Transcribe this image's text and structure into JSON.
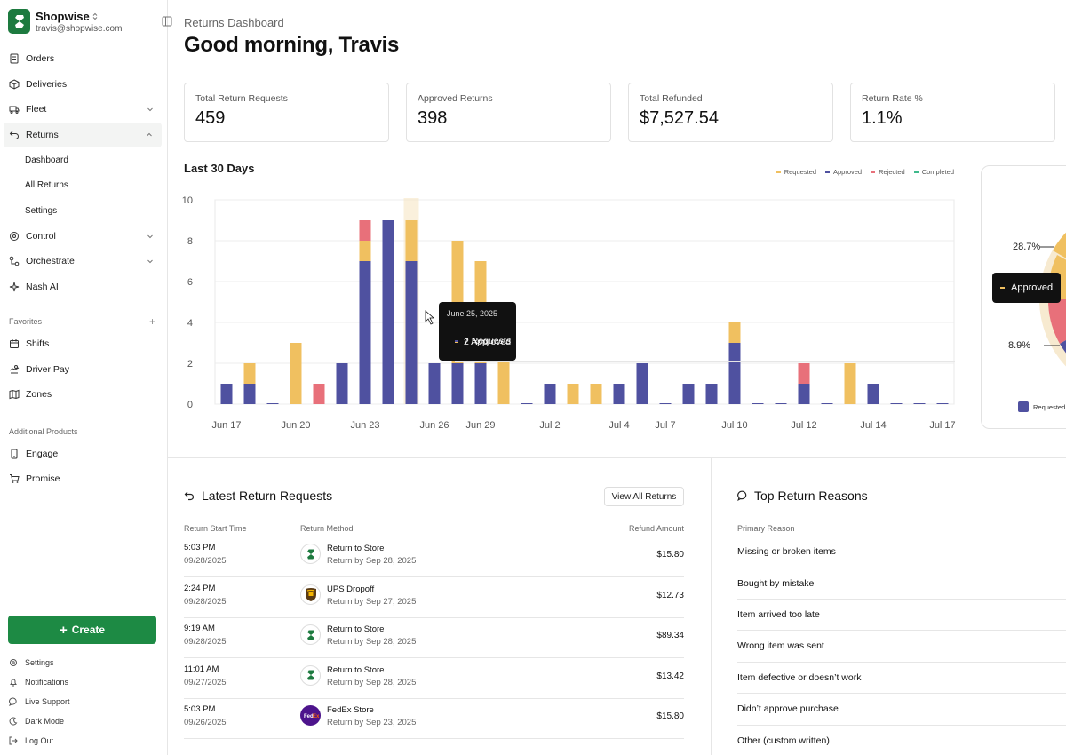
{
  "brand": {
    "name": "Shopwise",
    "email": "travis@shopwise.com"
  },
  "nav": {
    "items": [
      {
        "label": "Orders",
        "icon": "orders-icon"
      },
      {
        "label": "Deliveries",
        "icon": "box-icon"
      },
      {
        "label": "Fleet",
        "icon": "truck-icon"
      },
      {
        "label": "Returns",
        "icon": "return-icon"
      }
    ],
    "returns_sub": [
      "Dashboard",
      "All Returns",
      "Settings"
    ],
    "items2": [
      {
        "label": "Control",
        "icon": "control-icon"
      },
      {
        "label": "Orchestrate",
        "icon": "orchestrate-icon"
      },
      {
        "label": "Nash AI",
        "icon": "sparkle-icon"
      }
    ],
    "favorites_label": "Favorites",
    "favorites": [
      {
        "label": "Shifts",
        "icon": "calendar-icon"
      },
      {
        "label": "Driver Pay",
        "icon": "pay-icon"
      },
      {
        "label": "Zones",
        "icon": "map-icon"
      }
    ],
    "additional_label": "Additional Products",
    "additional": [
      {
        "label": "Engage",
        "icon": "phone-icon"
      },
      {
        "label": "Promise",
        "icon": "cart-icon"
      }
    ],
    "create_label": "Create",
    "footer": [
      "Settings",
      "Notifications",
      "Live Support",
      "Dark Mode",
      "Log Out"
    ]
  },
  "header": {
    "breadcrumb": "Returns Dashboard",
    "greeting": "Good morning, Travis"
  },
  "stats": [
    {
      "label": "Total Return Requests",
      "value": "459"
    },
    {
      "label": "Approved Returns",
      "value": "398"
    },
    {
      "label": "Total Refunded",
      "value": "$7,527.54"
    },
    {
      "label": "Return Rate %",
      "value": "1.1%"
    }
  ],
  "colors": {
    "requested": "#f0c060",
    "approved": "#4f51a0",
    "rejected": "#e8707a",
    "completed": "#3fb98c",
    "brand": "#1d8a44"
  },
  "chart_data": {
    "type": "bar",
    "title": "Last 30 Days",
    "stacked": true,
    "legend": [
      "Requested",
      "Approved",
      "Rejected",
      "Completed"
    ],
    "legend_position": "top-right",
    "ylim": [
      0,
      10
    ],
    "yticks": [
      0,
      2,
      4,
      6,
      8,
      10
    ],
    "xtick_labels": [
      "Jun 17",
      "Jun 20",
      "Jun 23",
      "Jun 26",
      "Jun 29",
      "Jul 2",
      "Jul 4",
      "Jul 7",
      "Jul 10",
      "Jul 12",
      "Jul 14",
      "Jul 17"
    ],
    "xtick_index": [
      0,
      3,
      6,
      9,
      11,
      14,
      17,
      19,
      22,
      25,
      28,
      31
    ],
    "categories": [
      "Jun 17",
      "Jun 18",
      "Jun 19",
      "Jun 20",
      "Jun 21",
      "Jun 22",
      "Jun 23",
      "Jun 24",
      "Jun 25",
      "Jun 26",
      "Jun 27",
      "Jun 28",
      "Jun 29",
      "Jun 30",
      "Jul 1",
      "Jul 2",
      "Jul 3",
      "Jul 4",
      "Jul 5",
      "Jul 6",
      "Jul 7",
      "Jul 8",
      "Jul 9",
      "Jul 10",
      "Jul 11",
      "Jul 12",
      "Jul 13",
      "Jul 14",
      "Jul 15",
      "Jul 16",
      "Jul 17",
      "Jul 18"
    ],
    "series": [
      {
        "name": "Approved",
        "values": [
          1,
          1,
          0,
          0,
          0,
          2,
          7,
          9,
          7,
          2,
          2,
          2,
          0,
          0,
          1,
          0,
          0,
          1,
          2,
          0,
          1,
          1,
          3,
          0,
          0,
          1,
          0,
          0,
          1,
          0,
          0,
          0
        ]
      },
      {
        "name": "Requested",
        "values": [
          0,
          1,
          0,
          3,
          0,
          0,
          1,
          0,
          2,
          0,
          6,
          5,
          3,
          0,
          0,
          1,
          1,
          0,
          0,
          0,
          0,
          0,
          1,
          0,
          0,
          0,
          0,
          2,
          0,
          0,
          0,
          0
        ]
      },
      {
        "name": "Rejected",
        "values": [
          0,
          0,
          0,
          0,
          1,
          0,
          1,
          0,
          0,
          0,
          0,
          0,
          0,
          0,
          0,
          0,
          0,
          0,
          0,
          0,
          0,
          0,
          0,
          0,
          0,
          1,
          0,
          0,
          0,
          0,
          0,
          0
        ]
      },
      {
        "name": "Completed",
        "values": [
          0,
          0,
          0,
          0,
          0,
          0,
          0,
          0,
          0,
          0,
          0,
          0,
          0,
          0,
          0,
          0,
          0,
          0,
          0,
          0,
          0,
          0,
          0,
          0,
          0,
          0,
          0,
          0,
          0,
          0,
          0,
          0
        ]
      }
    ],
    "tooltip": {
      "date": "June 25, 2025",
      "approved_text": "2 Approved",
      "requests_text": "7 Requests"
    },
    "pie": {
      "label_top": "28.7%",
      "label_bottom": "8.9%",
      "tooltip": "Approved",
      "legend": "Requested"
    }
  },
  "latest": {
    "title": "Latest Return Requests",
    "view_all": "View All Returns",
    "headers": [
      "Return Start Time",
      "Return Method",
      "Refund Amount"
    ],
    "rows": [
      {
        "time": "5:03 PM",
        "date": "09/28/2025",
        "method": "Return to Store",
        "by": "Return by Sep 28, 2025",
        "amount": "$15.80",
        "logo": "shopwise-logo"
      },
      {
        "time": "2:24 PM",
        "date": "09/28/2025",
        "method": "UPS Dropoff",
        "by": "Return by Sep 27, 2025",
        "amount": "$12.73",
        "logo": "ups-logo"
      },
      {
        "time": "9:19 AM",
        "date": "09/28/2025",
        "method": "Return to Store",
        "by": "Return by Sep 28, 2025",
        "amount": "$89.34",
        "logo": "shopwise-logo"
      },
      {
        "time": "11:01 AM",
        "date": "09/27/2025",
        "method": "Return to Store",
        "by": "Return by Sep 28, 2025",
        "amount": "$13.42",
        "logo": "shopwise-logo"
      },
      {
        "time": "5:03 PM",
        "date": "09/26/2025",
        "method": "FedEx Store",
        "by": "Return by Sep 23, 2025",
        "amount": "$15.80",
        "logo": "fedex-logo"
      }
    ]
  },
  "reasons": {
    "title": "Top Return Reasons",
    "header": "Primary Reason",
    "items": [
      "Missing or broken items",
      "Bought by mistake",
      "Item arrived too late",
      "Wrong item was sent",
      "Item defective or doesn’t work",
      "Didn’t approve purchase",
      "Other (custom written)"
    ]
  }
}
